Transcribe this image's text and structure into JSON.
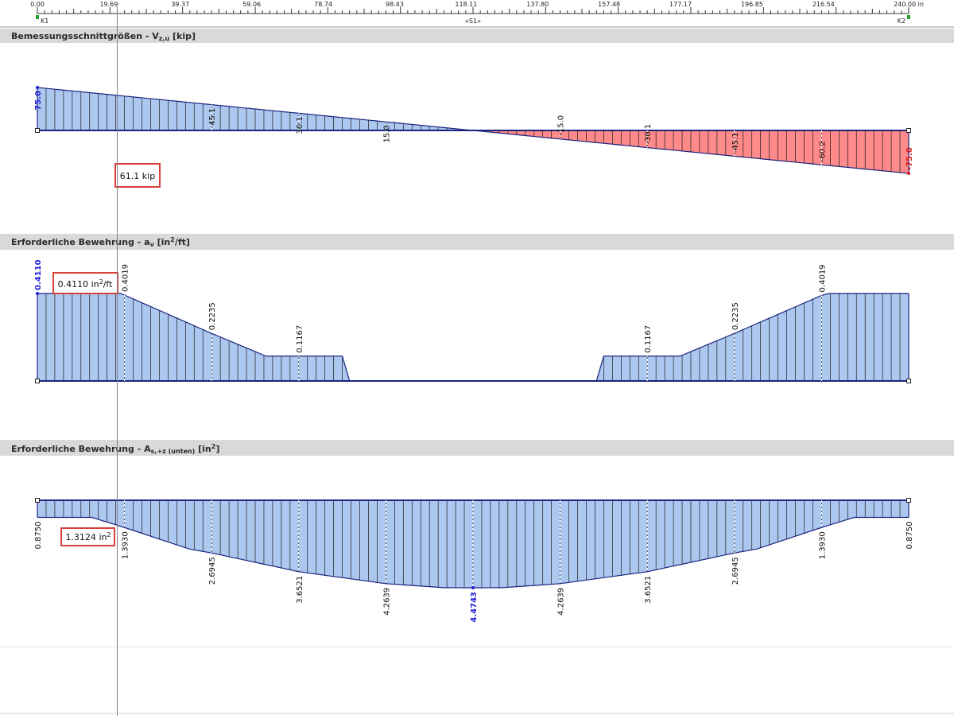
{
  "ruler": {
    "ticks": [
      "0.00",
      "19.69",
      "39.37",
      "59.06",
      "78.74",
      "98.43",
      "118.11",
      "137.80",
      "157.48",
      "177.17",
      "196.85",
      "216.54",
      "240.00 in"
    ],
    "node_left": "K1",
    "node_right": "K2",
    "member": "»S1»",
    "length": 240
  },
  "cursor": {
    "x": 22
  },
  "colors": {
    "fill_pos": "#adc8ef",
    "fill_neg": "#ff8a8a",
    "outline": "#1a237e",
    "label_blue": "#1f1fd6",
    "label_red": "#d81818",
    "header_bg": "#d9d9d9",
    "callout_border": "#d9413c"
  },
  "chart_data": [
    {
      "type": "area",
      "title": "Bemessungsschnittgrößen - V",
      "title_sub": "z,u",
      "title_unit": "[kip]",
      "x": [
        0,
        240
      ],
      "values": [
        75.0,
        -75.0
      ],
      "labels": [
        {
          "x": 0,
          "text": "75.0",
          "color": "blue"
        },
        {
          "x": 48,
          "text": "45.1"
        },
        {
          "x": 72,
          "text": "30.1"
        },
        {
          "x": 96,
          "text": "15.0"
        },
        {
          "x": 144,
          "text": "-15.0"
        },
        {
          "x": 168,
          "text": "-30.1"
        },
        {
          "x": 192,
          "text": "-45.1"
        },
        {
          "x": 216,
          "text": "-60.2"
        },
        {
          "x": 240,
          "text": "-75.0",
          "color": "red"
        }
      ],
      "callout": {
        "value": "61.1",
        "unit": "kip"
      }
    },
    {
      "type": "area",
      "title": "Erforderliche Bewehrung - a",
      "title_sub": "v",
      "title_unit_pre": "[in",
      "title_unit_sup": "2",
      "title_unit_post": "/ft]",
      "x": [
        0,
        23,
        48,
        63,
        84,
        86,
        154,
        156,
        177,
        192,
        216,
        218,
        240
      ],
      "values": [
        0.411,
        0.411,
        0.2235,
        0.1167,
        0.1167,
        0,
        0,
        0.1167,
        0.1167,
        0.2235,
        0.4019,
        0.411,
        0.411
      ],
      "labels": [
        {
          "x": 0,
          "text": "0.4110",
          "color": "blue"
        },
        {
          "x": 24,
          "text": "0.4019"
        },
        {
          "x": 48,
          "text": "0.2235"
        },
        {
          "x": 72,
          "text": "0.1167"
        },
        {
          "x": 168,
          "text": "0.1167"
        },
        {
          "x": 192,
          "text": "0.2235"
        },
        {
          "x": 216,
          "text": "0.4019"
        }
      ],
      "callout": {
        "value": "0.4110",
        "unit_pre": "in",
        "unit_sup": "2",
        "unit_post": "/ft"
      }
    },
    {
      "type": "area",
      "title": "Erforderliche Bewehrung - A",
      "title_sub": "s,+z (unten)",
      "title_unit_pre": "[in",
      "title_unit_sup": "2",
      "title_unit_post": "]",
      "x": [
        0,
        15,
        24,
        42,
        48,
        72,
        96,
        112,
        120,
        128,
        144,
        168,
        192,
        198,
        216,
        225,
        240
      ],
      "values": [
        0.875,
        0.875,
        1.393,
        2.5,
        2.6945,
        3.6521,
        4.2639,
        4.47,
        4.4743,
        4.47,
        4.2639,
        3.6521,
        2.6945,
        2.5,
        1.393,
        0.875,
        0.875
      ],
      "labels": [
        {
          "x": 0,
          "text": "0.8750"
        },
        {
          "x": 24,
          "text": "1.3930"
        },
        {
          "x": 48,
          "text": "2.6945"
        },
        {
          "x": 72,
          "text": "3.6521"
        },
        {
          "x": 96,
          "text": "4.2639"
        },
        {
          "x": 120,
          "text": "4.4743",
          "color": "blue"
        },
        {
          "x": 144,
          "text": "4.2639"
        },
        {
          "x": 168,
          "text": "3.6521"
        },
        {
          "x": 192,
          "text": "2.6945"
        },
        {
          "x": 216,
          "text": "1.3930"
        },
        {
          "x": 240,
          "text": "0.8750"
        }
      ],
      "callout": {
        "value": "1.3124",
        "unit_pre": "in",
        "unit_sup": "2",
        "unit_post": ""
      }
    }
  ]
}
